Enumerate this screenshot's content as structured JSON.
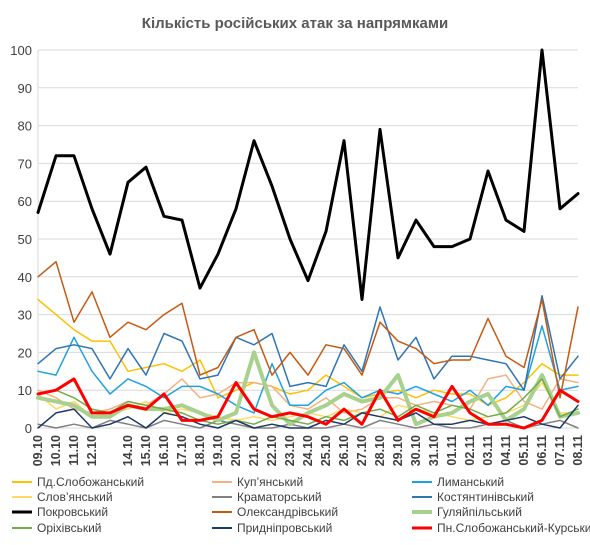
{
  "chart_data": {
    "type": "line",
    "title": "Кількість російських атак за напрямками",
    "ylim": [
      0,
      100
    ],
    "yticks": [
      0,
      10,
      20,
      30,
      40,
      50,
      60,
      70,
      80,
      90,
      100
    ],
    "grid": "horizontal",
    "legend_position": "bottom",
    "categories": [
      "09.10",
      "10.10",
      "11.10",
      "12.10",
      "13.10",
      "14.10",
      "15.10",
      "16.10",
      "17.10",
      "18.10",
      "19.10",
      "20.10",
      "21.10",
      "22.10",
      "23.10",
      "24.10",
      "25.10",
      "26.10",
      "27.10",
      "28.10",
      "29.10",
      "30.10",
      "31.10",
      "01.11",
      "02.11",
      "03.11",
      "04.11",
      "05.11",
      "06.11",
      "07.11",
      "08.11"
    ],
    "x": [
      "09.10",
      "10.10",
      "11.10",
      "12.10",
      "13.10",
      "14.10",
      "15.10",
      "16.10",
      "17.10",
      "18.10",
      "19.10",
      "20.10",
      "21.10",
      "22.10",
      "23.10",
      "24.10",
      "25.10",
      "26.10",
      "27.10",
      "28.10",
      "29.10",
      "30.10",
      "31.10",
      "01.11",
      "02.11",
      "03.11",
      "04.11",
      "05.11",
      "06.11",
      "07.11",
      "08.11"
    ],
    "xtick_labels": [
      "09.10",
      "10.10",
      "11.10",
      "12.10",
      "14.10",
      "15.10",
      "16.10",
      "17.10",
      "18.10",
      "19.10",
      "20.10",
      "21.10",
      "22.10",
      "23.10",
      "24.10",
      "25.10",
      "26.10",
      "27.10",
      "28.10",
      "29.10",
      "30.10",
      "31.10",
      "01.11",
      "02.11",
      "03.11",
      "04.11",
      "05.11",
      "06.11",
      "07.11",
      "08.11"
    ],
    "series": [
      {
        "name": "Пд.Слобожанський",
        "color": "#FFC000",
        "width": 1.5,
        "values": [
          34,
          30,
          26,
          23,
          23,
          15,
          16,
          17,
          15,
          18,
          8,
          10,
          12,
          11,
          9,
          10,
          14,
          11,
          8,
          9,
          10,
          8,
          10,
          9,
          9,
          6,
          8,
          12,
          17,
          14,
          14
        ]
      },
      {
        "name": "Куп’янський",
        "color": "#F4B183",
        "width": 1.5,
        "values": [
          10,
          8,
          5,
          4,
          5,
          7,
          6,
          9,
          13,
          8,
          9,
          12,
          12,
          11,
          6,
          5,
          8,
          4,
          5,
          8,
          8,
          6,
          7,
          6,
          5,
          13,
          14,
          7,
          5,
          13,
          12
        ]
      },
      {
        "name": "Лиманський",
        "color": "#1FA2E0",
        "width": 1.5,
        "values": [
          15,
          14,
          24,
          15,
          9,
          13,
          11,
          8,
          11,
          11,
          9,
          6,
          4,
          17,
          6,
          6,
          10,
          12,
          8,
          10,
          9,
          11,
          9,
          7,
          10,
          6,
          11,
          10,
          27,
          10,
          11
        ]
      },
      {
        "name": "Слов’янський",
        "color": "#FFD966",
        "width": 1.5,
        "values": [
          9,
          5,
          7,
          3,
          4,
          5,
          7,
          4,
          5,
          4,
          3,
          2,
          3,
          2,
          3,
          4,
          3,
          5,
          4,
          3,
          6,
          5,
          4,
          3,
          2,
          3,
          4,
          6,
          12,
          4,
          4
        ]
      },
      {
        "name": "Краматорський",
        "color": "#808080",
        "width": 1.5,
        "values": [
          1,
          0,
          1,
          0,
          2,
          1,
          0,
          2,
          1,
          0,
          2,
          1,
          0,
          0,
          1,
          0,
          0,
          1,
          0,
          2,
          1,
          0,
          1,
          0,
          0,
          1,
          2,
          0,
          1,
          2,
          0
        ]
      },
      {
        "name": "Костянтинівський",
        "color": "#2E75B6",
        "width": 1.5,
        "values": [
          17,
          21,
          22,
          21,
          13,
          21,
          14,
          25,
          23,
          13,
          14,
          24,
          22,
          25,
          11,
          12,
          11,
          22,
          15,
          32,
          18,
          24,
          13,
          19,
          19,
          18,
          17,
          10,
          35,
          13,
          19
        ]
      },
      {
        "name": "Покровський",
        "color": "#000000",
        "width": 3,
        "values": [
          57,
          72,
          72,
          58,
          46,
          65,
          69,
          56,
          55,
          37,
          46,
          58,
          76,
          64,
          50,
          39,
          52,
          76,
          34,
          79,
          45,
          55,
          48,
          48,
          50,
          68,
          55,
          52,
          100,
          58,
          62
        ]
      },
      {
        "name": "Олександрівський",
        "color": "#C55A11",
        "width": 1.5,
        "values": [
          40,
          44,
          28,
          36,
          24,
          28,
          26,
          30,
          33,
          14,
          16,
          24,
          26,
          14,
          20,
          14,
          22,
          21,
          14,
          28,
          23,
          21,
          17,
          18,
          18,
          29,
          19,
          16,
          34,
          8,
          32
        ]
      },
      {
        "name": "Гуляйпільський",
        "color": "#A9D18E",
        "width": 4,
        "values": [
          8,
          7,
          6,
          3,
          3,
          6,
          5,
          5,
          6,
          4,
          2,
          4,
          20,
          6,
          1,
          4,
          6,
          9,
          7,
          8,
          14,
          1,
          3,
          4,
          7,
          9,
          2,
          5,
          14,
          3,
          4
        ]
      },
      {
        "name": "Оріхівський",
        "color": "#70AD47",
        "width": 1.5,
        "values": [
          9,
          10,
          8,
          5,
          4,
          7,
          6,
          5,
          4,
          2,
          1,
          2,
          1,
          3,
          2,
          1,
          3,
          2,
          4,
          5,
          3,
          6,
          4,
          6,
          5,
          3,
          4,
          8,
          13,
          3,
          5
        ]
      },
      {
        "name": "Придніпровський",
        "color": "#1F3864",
        "width": 1.5,
        "values": [
          0,
          4,
          5,
          0,
          1,
          3,
          0,
          4,
          3,
          1,
          0,
          2,
          0,
          1,
          0,
          0,
          2,
          1,
          4,
          3,
          2,
          4,
          1,
          1,
          2,
          1,
          2,
          3,
          1,
          0,
          6
        ]
      },
      {
        "name": "Пн.Слобожанський-Курський",
        "color": "#FF0000",
        "width": 3,
        "values": [
          9,
          10,
          13,
          4,
          4,
          6,
          5,
          9,
          2,
          2,
          3,
          12,
          5,
          3,
          4,
          3,
          1,
          5,
          1,
          10,
          2,
          5,
          3,
          11,
          4,
          1,
          1,
          0,
          2,
          10,
          7
        ]
      }
    ]
  }
}
